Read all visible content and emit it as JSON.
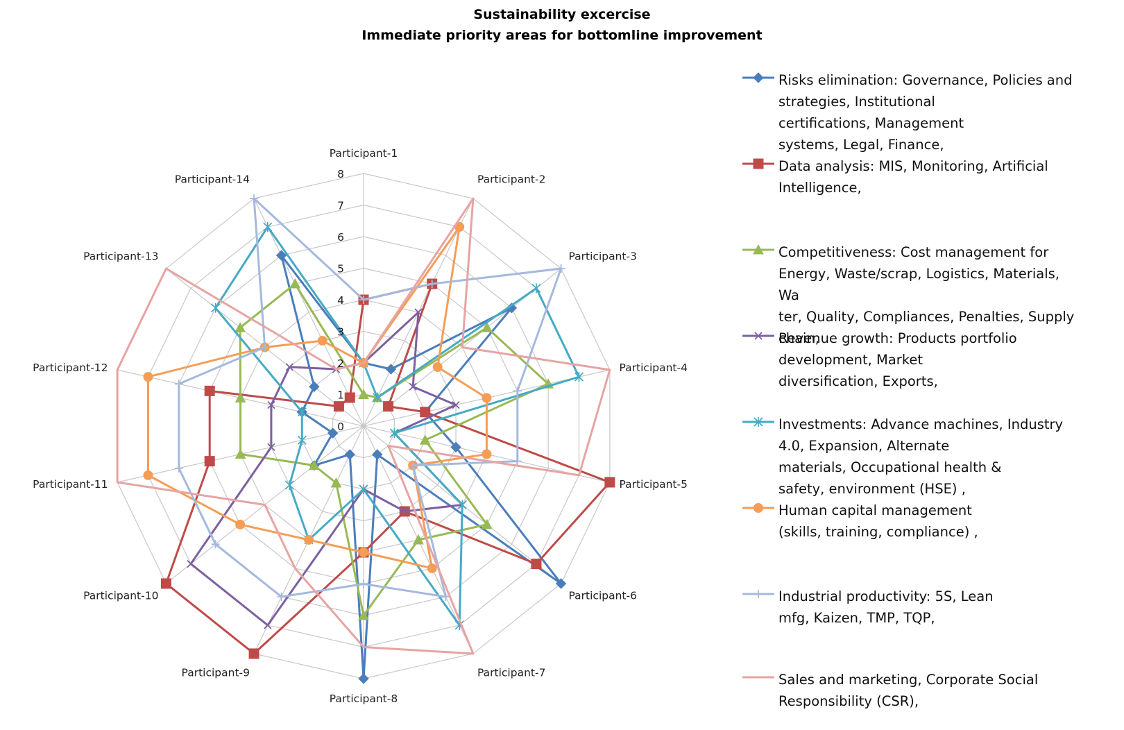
{
  "title_line1": "Sustainability excercise",
  "title_line2": "Immediate priority areas for bottomline improvement",
  "chart_data": {
    "type": "radar",
    "title": "Sustainability excercise / Immediate priority areas for bottomline improvement",
    "categories": [
      "Participant-1",
      "Participant-2",
      "Participant-3",
      "Participant-4",
      "Participant-5",
      "Participant-6",
      "Participant-7",
      "Participant-8",
      "Participant-9",
      "Participant-10",
      "Participant-11",
      "Participant-12",
      "Participant-13",
      "Participant-14"
    ],
    "r_ticks": [
      "0",
      "1",
      "2",
      "3",
      "4",
      "5",
      "6",
      "7",
      "8"
    ],
    "rlim": [
      0,
      8
    ],
    "grid": true,
    "legend_position": "right",
    "series": [
      {
        "name": "Risks elimination:  Governance, Policies and strategies, Institutional certifications, Management systems, Legal, Finance,",
        "marker": "diamond",
        "color": "#4A7EBB",
        "values": [
          2,
          2,
          6,
          2,
          3,
          8,
          1,
          8,
          1,
          2,
          1,
          2,
          2,
          6
        ]
      },
      {
        "name": "Data analysis: MIS, Monitoring, Artificial Intelligence,",
        "marker": "square",
        "color": "#BE4B48",
        "values": [
          4,
          5,
          1,
          2,
          8,
          7,
          3,
          4,
          8,
          8,
          5,
          5,
          1,
          1
        ]
      },
      {
        "name": "Competitiveness: Cost management  for Energy, Waste/scrap, Logistics, Materials, Water, Quality, Compliances,  Penalties, Supply chain,",
        "marker": "triangle",
        "color": "#98B954",
        "values": [
          1,
          1,
          5,
          6,
          2,
          5,
          4,
          6,
          2,
          2,
          4,
          4,
          5,
          5
        ]
      },
      {
        "name": "Revenue growth: Products portfolio development,  Market diversification, Exports,",
        "marker": "x",
        "color": "#7D60A0",
        "values": [
          2,
          4,
          2,
          3,
          1,
          4,
          3,
          2,
          7,
          7,
          3,
          3,
          3,
          2
        ]
      },
      {
        "name": "Investments: Advance machines, Industry 4.0, Expansion, Alternate materials, Occupational health & safety, environment (HSE) ,",
        "marker": "star",
        "color": "#46AAC5",
        "values": [
          2,
          1,
          7,
          7,
          1,
          4,
          7,
          2,
          4,
          3,
          2,
          2,
          6,
          7
        ]
      },
      {
        "name": "Human capital management (skills, training, compliance) ,",
        "marker": "circle",
        "color": "#F59D56",
        "values": [
          2,
          7,
          3,
          4,
          4,
          2,
          5,
          4,
          4,
          5,
          7,
          7,
          4,
          3
        ]
      },
      {
        "name": "Industrial productivity: 5S, Lean mfg, Kaizen, TMP, TQP,",
        "marker": "plus",
        "color": "#A5B9DD",
        "values": [
          4,
          5,
          8,
          5,
          5,
          2,
          6,
          5,
          6,
          6,
          6,
          6,
          4,
          8
        ]
      },
      {
        "name": "Sales and marketing, Corporate Social Responsibility (CSR),",
        "marker": "none",
        "color": "#E6A4A3",
        "values": [
          2,
          8,
          4,
          8,
          7,
          1,
          8,
          7,
          5,
          4,
          8,
          8,
          8,
          2
        ]
      }
    ]
  },
  "legend": [
    {
      "label": "Risks elimination:  Governance, Policies and strategies, Institutional certifications, Management systems, Legal, Finance,",
      "lines": [
        "Risks elimination:  Governance, Policies and",
        "strategies, Institutional",
        "certifications, Management",
        "systems, Legal, Finance,"
      ]
    },
    {
      "label": "Data analysis: MIS, Monitoring, Artificial Intelligence,",
      "lines": [
        "Data analysis: MIS, Monitoring, Artificial",
        "Intelligence,"
      ]
    },
    {
      "label": "Competitiveness: Cost management  for Energy, Waste/scrap, Logistics, Materials, Water, Quality, Compliances,  Penalties, Supply chain,",
      "lines": [
        "Competitiveness: Cost management  for",
        "Energy, Waste/scrap, Logistics, Materials, Wa",
        "ter, Quality, Compliances,  Penalties, Supply",
        "chain,"
      ]
    },
    {
      "label": "Revenue growth: Products portfolio development,  Market diversification, Exports,",
      "lines": [
        "Revenue growth: Products portfolio",
        "development,  Market",
        "diversification, Exports,"
      ]
    },
    {
      "label": "Investments: Advance machines, Industry 4.0, Expansion, Alternate materials, Occupational health & safety, environment (HSE) ,",
      "lines": [
        "Investments: Advance machines, Industry",
        "4.0, Expansion, Alternate",
        "materials, Occupational health &",
        "safety, environment (HSE) ,"
      ]
    },
    {
      "label": "Human capital management (skills, training, compliance) ,",
      "lines": [
        "Human capital management",
        "(skills, training, compliance) ,"
      ]
    },
    {
      "label": "Industrial productivity: 5S, Lean mfg, Kaizen, TMP, TQP,",
      "lines": [
        "Industrial productivity: 5S, Lean",
        "mfg, Kaizen, TMP, TQP,"
      ]
    },
    {
      "label": "Sales and marketing, Corporate Social Responsibility (CSR),",
      "lines": [
        "Sales and marketing, Corporate Social",
        "Responsibility (CSR),"
      ]
    }
  ]
}
